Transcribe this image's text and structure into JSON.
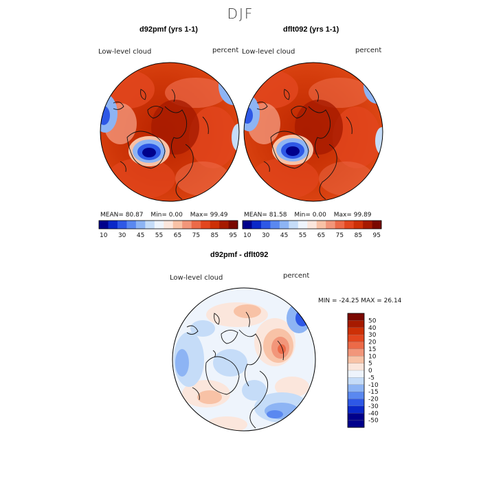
{
  "season": "DJF",
  "palette": {
    "blues": [
      "#00008b",
      "#0a28c8",
      "#2e58e6",
      "#5a88f0",
      "#8db4f4",
      "#c5dcf8",
      "#eef4fc"
    ],
    "reds": [
      "#fbe6dc",
      "#f8c2a6",
      "#f2967a",
      "#ec6a48",
      "#e2461e",
      "#cd3006",
      "#a61a00",
      "#7a0800"
    ],
    "neutral": "#f4f4f4"
  },
  "panels": [
    {
      "title": "d92pmf (yrs 1-1)",
      "variable": "Low-level cloud",
      "units": "percent",
      "stats": {
        "mean_label": "MEAN=",
        "mean": "80.87",
        "min_label": "Min=",
        "min": "0.00",
        "max_label": "Max=",
        "max": "99.49"
      }
    },
    {
      "title": "dflt092 (yrs 1-1)",
      "variable": "Low-level cloud",
      "units": "percent",
      "stats": {
        "mean_label": "MEAN=",
        "mean": "81.58",
        "min_label": "Min=",
        "min": "0.00",
        "max_label": "Max=",
        "max": "99.89"
      }
    }
  ],
  "top_colorbar": {
    "levels": [
      "10",
      "30",
      "45",
      "55",
      "65",
      "75",
      "85",
      "95"
    ]
  },
  "diff": {
    "title": "d92pmf - dflt092",
    "variable": "Low-level cloud",
    "units": "percent",
    "minmax_text": "MIN = -24.25 MAX =  26.14",
    "levels": [
      "50",
      "40",
      "30",
      "20",
      "15",
      "10",
      "5",
      "0",
      "-5",
      "-10",
      "-15",
      "-20",
      "-30",
      "-40",
      "-50"
    ]
  }
}
